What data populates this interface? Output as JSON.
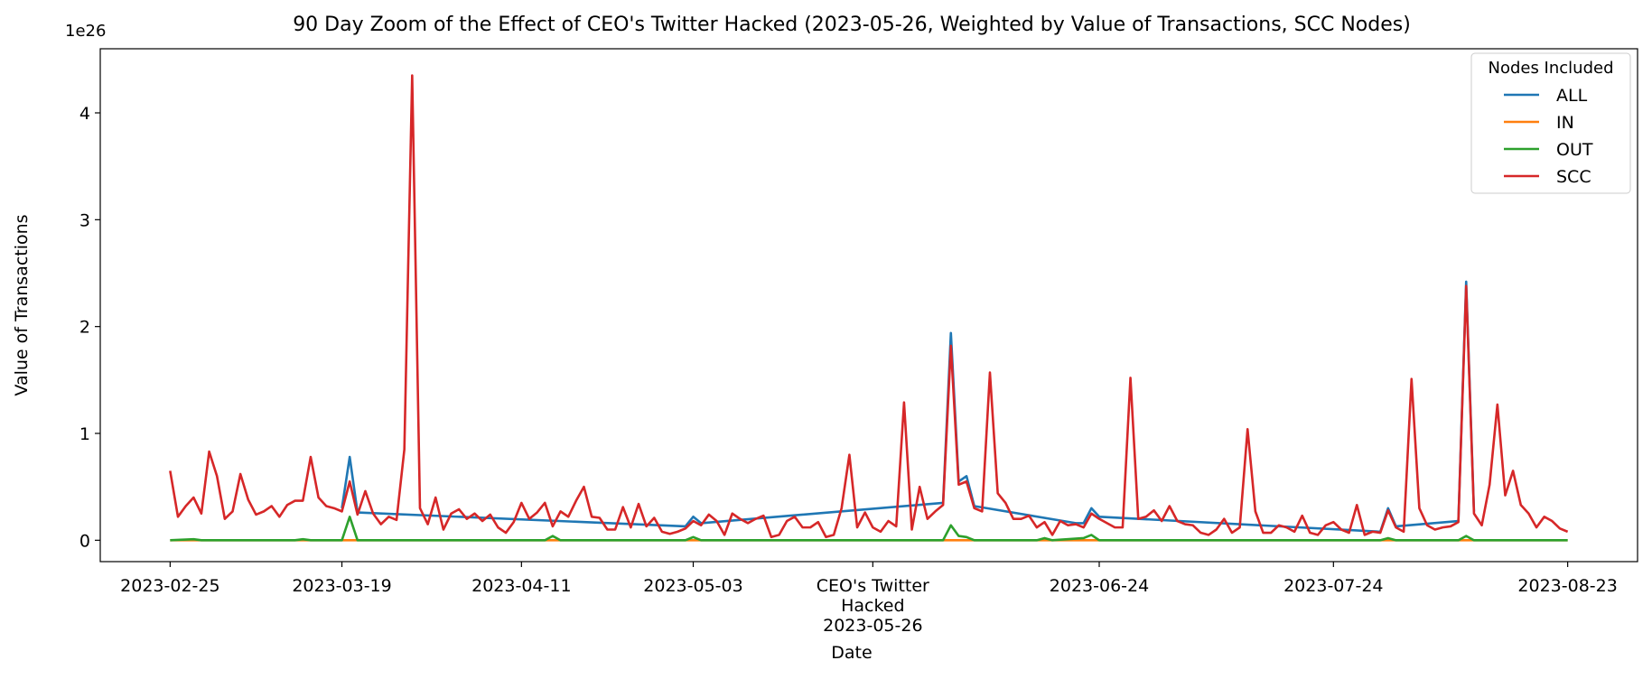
{
  "chart_data": {
    "type": "line",
    "title": "90 Day Zoom of the Effect of CEO's Twitter Hacked (2023-05-26, Weighted by Value of Transactions, SCC Nodes)",
    "xlabel": "Date",
    "ylabel": "Value of Transactions",
    "y_multiplier_label": "1e26",
    "ylim": [
      -0.2,
      4.6
    ],
    "y_ticks": [
      0,
      1,
      2,
      3,
      4
    ],
    "y_tick_labels": [
      "0",
      "1",
      "2",
      "3",
      "4"
    ],
    "x_tick_labels": [
      {
        "date": "2023-02-25",
        "lines": [
          "2023-02-25"
        ]
      },
      {
        "date": "2023-03-19",
        "lines": [
          "2023-03-19"
        ]
      },
      {
        "date": "2023-04-11",
        "lines": [
          "2023-04-11"
        ]
      },
      {
        "date": "2023-05-03",
        "lines": [
          "2023-05-03"
        ]
      },
      {
        "date": "2023-05-26",
        "lines": [
          "CEO's Twitter",
          "Hacked",
          "2023-05-26"
        ]
      },
      {
        "date": "2023-06-24",
        "lines": [
          "2023-06-24"
        ]
      },
      {
        "date": "2023-07-24",
        "lines": [
          "2023-07-24"
        ]
      },
      {
        "date": "2023-08-23",
        "lines": [
          "2023-08-23"
        ]
      }
    ],
    "x_start": "2023-02-25",
    "x_end": "2023-08-23",
    "legend": {
      "title": "Nodes Included",
      "placement": "top-right"
    },
    "colors": {
      "ALL": "#1f77b4",
      "IN": "#ff7f0e",
      "OUT": "#2ca02c",
      "SCC": "#d62728"
    },
    "series": [
      {
        "name": "SCC",
        "points": [
          [
            "2023-02-25",
            0.65
          ],
          [
            "2023-02-26",
            0.22
          ],
          [
            "2023-02-27",
            0.32
          ],
          [
            "2023-02-28",
            0.4
          ],
          [
            "2023-03-01",
            0.25
          ],
          [
            "2023-03-02",
            0.83
          ],
          [
            "2023-03-03",
            0.6
          ],
          [
            "2023-03-04",
            0.2
          ],
          [
            "2023-03-05",
            0.27
          ],
          [
            "2023-03-06",
            0.62
          ],
          [
            "2023-03-07",
            0.38
          ],
          [
            "2023-03-08",
            0.24
          ],
          [
            "2023-03-09",
            0.27
          ],
          [
            "2023-03-10",
            0.32
          ],
          [
            "2023-03-11",
            0.22
          ],
          [
            "2023-03-12",
            0.33
          ],
          [
            "2023-03-13",
            0.37
          ],
          [
            "2023-03-14",
            0.37
          ],
          [
            "2023-03-15",
            0.78
          ],
          [
            "2023-03-16",
            0.4
          ],
          [
            "2023-03-17",
            0.32
          ],
          [
            "2023-03-18",
            0.3
          ],
          [
            "2023-03-19",
            0.27
          ],
          [
            "2023-03-20",
            0.55
          ],
          [
            "2023-03-21",
            0.24
          ],
          [
            "2023-03-22",
            0.46
          ],
          [
            "2023-03-23",
            0.25
          ],
          [
            "2023-03-24",
            0.15
          ],
          [
            "2023-03-25",
            0.22
          ],
          [
            "2023-03-26",
            0.19
          ],
          [
            "2023-03-27",
            0.85
          ],
          [
            "2023-03-28",
            4.35
          ],
          [
            "2023-03-29",
            0.3
          ],
          [
            "2023-03-30",
            0.15
          ],
          [
            "2023-03-31",
            0.4
          ],
          [
            "2023-04-01",
            0.1
          ],
          [
            "2023-04-02",
            0.25
          ],
          [
            "2023-04-03",
            0.29
          ],
          [
            "2023-04-04",
            0.2
          ],
          [
            "2023-04-05",
            0.25
          ],
          [
            "2023-04-06",
            0.18
          ],
          [
            "2023-04-07",
            0.24
          ],
          [
            "2023-04-08",
            0.12
          ],
          [
            "2023-04-09",
            0.07
          ],
          [
            "2023-04-10",
            0.17
          ],
          [
            "2023-04-11",
            0.35
          ],
          [
            "2023-04-12",
            0.2
          ],
          [
            "2023-04-13",
            0.26
          ],
          [
            "2023-04-14",
            0.35
          ],
          [
            "2023-04-15",
            0.13
          ],
          [
            "2023-04-16",
            0.27
          ],
          [
            "2023-04-17",
            0.22
          ],
          [
            "2023-04-18",
            0.37
          ],
          [
            "2023-04-19",
            0.5
          ],
          [
            "2023-04-20",
            0.22
          ],
          [
            "2023-04-21",
            0.21
          ],
          [
            "2023-04-22",
            0.1
          ],
          [
            "2023-04-23",
            0.1
          ],
          [
            "2023-04-24",
            0.31
          ],
          [
            "2023-04-25",
            0.12
          ],
          [
            "2023-04-26",
            0.34
          ],
          [
            "2023-04-27",
            0.13
          ],
          [
            "2023-04-28",
            0.21
          ],
          [
            "2023-04-29",
            0.08
          ],
          [
            "2023-04-30",
            0.06
          ],
          [
            "2023-05-01",
            0.08
          ],
          [
            "2023-05-02",
            0.11
          ],
          [
            "2023-05-03",
            0.18
          ],
          [
            "2023-05-04",
            0.14
          ],
          [
            "2023-05-05",
            0.24
          ],
          [
            "2023-05-06",
            0.18
          ],
          [
            "2023-05-07",
            0.05
          ],
          [
            "2023-05-08",
            0.25
          ],
          [
            "2023-05-09",
            0.2
          ],
          [
            "2023-05-10",
            0.16
          ],
          [
            "2023-05-11",
            0.2
          ],
          [
            "2023-05-12",
            0.23
          ],
          [
            "2023-05-13",
            0.03
          ],
          [
            "2023-05-14",
            0.05
          ],
          [
            "2023-05-15",
            0.18
          ],
          [
            "2023-05-16",
            0.22
          ],
          [
            "2023-05-17",
            0.12
          ],
          [
            "2023-05-18",
            0.12
          ],
          [
            "2023-05-19",
            0.17
          ],
          [
            "2023-05-20",
            0.03
          ],
          [
            "2023-05-21",
            0.05
          ],
          [
            "2023-05-22",
            0.3
          ],
          [
            "2023-05-23",
            0.8
          ],
          [
            "2023-05-24",
            0.12
          ],
          [
            "2023-05-25",
            0.26
          ],
          [
            "2023-05-26",
            0.12
          ],
          [
            "2023-05-27",
            0.08
          ],
          [
            "2023-05-28",
            0.18
          ],
          [
            "2023-05-29",
            0.13
          ],
          [
            "2023-05-30",
            1.29
          ],
          [
            "2023-05-31",
            0.1
          ],
          [
            "2023-06-01",
            0.5
          ],
          [
            "2023-06-02",
            0.2
          ],
          [
            "2023-06-03",
            0.27
          ],
          [
            "2023-06-04",
            0.33
          ],
          [
            "2023-06-05",
            1.82
          ],
          [
            "2023-06-06",
            0.52
          ],
          [
            "2023-06-07",
            0.55
          ],
          [
            "2023-06-08",
            0.3
          ],
          [
            "2023-06-09",
            0.27
          ],
          [
            "2023-06-10",
            1.57
          ],
          [
            "2023-06-11",
            0.44
          ],
          [
            "2023-06-12",
            0.35
          ],
          [
            "2023-06-13",
            0.2
          ],
          [
            "2023-06-14",
            0.2
          ],
          [
            "2023-06-15",
            0.23
          ],
          [
            "2023-06-16",
            0.12
          ],
          [
            "2023-06-17",
            0.17
          ],
          [
            "2023-06-18",
            0.05
          ],
          [
            "2023-06-19",
            0.18
          ],
          [
            "2023-06-20",
            0.14
          ],
          [
            "2023-06-21",
            0.15
          ],
          [
            "2023-06-22",
            0.12
          ],
          [
            "2023-06-23",
            0.25
          ],
          [
            "2023-06-24",
            0.2
          ],
          [
            "2023-06-25",
            0.16
          ],
          [
            "2023-06-26",
            0.12
          ],
          [
            "2023-06-27",
            0.12
          ],
          [
            "2023-06-28",
            1.52
          ],
          [
            "2023-06-29",
            0.2
          ],
          [
            "2023-06-30",
            0.22
          ],
          [
            "2023-07-01",
            0.28
          ],
          [
            "2023-07-02",
            0.18
          ],
          [
            "2023-07-03",
            0.32
          ],
          [
            "2023-07-04",
            0.18
          ],
          [
            "2023-07-05",
            0.15
          ],
          [
            "2023-07-06",
            0.14
          ],
          [
            "2023-07-07",
            0.07
          ],
          [
            "2023-07-08",
            0.05
          ],
          [
            "2023-07-09",
            0.1
          ],
          [
            "2023-07-10",
            0.2
          ],
          [
            "2023-07-11",
            0.07
          ],
          [
            "2023-07-12",
            0.12
          ],
          [
            "2023-07-13",
            1.04
          ],
          [
            "2023-07-14",
            0.27
          ],
          [
            "2023-07-15",
            0.07
          ],
          [
            "2023-07-16",
            0.07
          ],
          [
            "2023-07-17",
            0.14
          ],
          [
            "2023-07-18",
            0.12
          ],
          [
            "2023-07-19",
            0.08
          ],
          [
            "2023-07-20",
            0.23
          ],
          [
            "2023-07-21",
            0.07
          ],
          [
            "2023-07-22",
            0.05
          ],
          [
            "2023-07-23",
            0.14
          ],
          [
            "2023-07-24",
            0.17
          ],
          [
            "2023-07-25",
            0.1
          ],
          [
            "2023-07-26",
            0.07
          ],
          [
            "2023-07-27",
            0.33
          ],
          [
            "2023-07-28",
            0.05
          ],
          [
            "2023-07-29",
            0.08
          ],
          [
            "2023-07-30",
            0.07
          ],
          [
            "2023-07-31",
            0.28
          ],
          [
            "2023-08-01",
            0.12
          ],
          [
            "2023-08-02",
            0.08
          ],
          [
            "2023-08-03",
            1.51
          ],
          [
            "2023-08-04",
            0.3
          ],
          [
            "2023-08-05",
            0.14
          ],
          [
            "2023-08-06",
            0.1
          ],
          [
            "2023-08-07",
            0.12
          ],
          [
            "2023-08-08",
            0.13
          ],
          [
            "2023-08-09",
            0.17
          ],
          [
            "2023-08-10",
            2.38
          ],
          [
            "2023-08-11",
            0.25
          ],
          [
            "2023-08-12",
            0.14
          ],
          [
            "2023-08-13",
            0.52
          ],
          [
            "2023-08-14",
            1.27
          ],
          [
            "2023-08-15",
            0.42
          ],
          [
            "2023-08-16",
            0.65
          ],
          [
            "2023-08-17",
            0.33
          ],
          [
            "2023-08-18",
            0.25
          ],
          [
            "2023-08-19",
            0.12
          ],
          [
            "2023-08-20",
            0.22
          ],
          [
            "2023-08-21",
            0.18
          ],
          [
            "2023-08-22",
            0.11
          ],
          [
            "2023-08-23",
            0.08
          ]
        ]
      },
      {
        "name": "ALL",
        "points": [
          [
            "2023-03-19",
            0.3
          ],
          [
            "2023-03-20",
            0.78
          ],
          [
            "2023-03-21",
            0.26
          ],
          [
            "2023-05-02",
            0.13
          ],
          [
            "2023-05-03",
            0.22
          ],
          [
            "2023-05-04",
            0.16
          ],
          [
            "2023-06-04",
            0.35
          ],
          [
            "2023-06-05",
            1.94
          ],
          [
            "2023-06-06",
            0.55
          ],
          [
            "2023-06-07",
            0.6
          ],
          [
            "2023-06-08",
            0.32
          ],
          [
            "2023-06-21",
            0.16
          ],
          [
            "2023-06-22",
            0.16
          ],
          [
            "2023-06-23",
            0.3
          ],
          [
            "2023-06-24",
            0.22
          ],
          [
            "2023-07-30",
            0.08
          ],
          [
            "2023-07-31",
            0.3
          ],
          [
            "2023-08-01",
            0.13
          ],
          [
            "2023-08-09",
            0.18
          ],
          [
            "2023-08-10",
            2.42
          ],
          [
            "2023-08-11",
            0.27
          ]
        ]
      },
      {
        "name": "IN",
        "points": [
          [
            "2023-02-25",
            0.0
          ],
          [
            "2023-08-23",
            0.0
          ]
        ]
      },
      {
        "name": "OUT",
        "points": [
          [
            "2023-02-25",
            0.0
          ],
          [
            "2023-02-28",
            0.01
          ],
          [
            "2023-03-01",
            0.0
          ],
          [
            "2023-03-13",
            0.0
          ],
          [
            "2023-03-14",
            0.01
          ],
          [
            "2023-03-15",
            0.0
          ],
          [
            "2023-03-19",
            0.0
          ],
          [
            "2023-03-20",
            0.22
          ],
          [
            "2023-03-21",
            0.0
          ],
          [
            "2023-04-14",
            0.0
          ],
          [
            "2023-04-15",
            0.04
          ],
          [
            "2023-04-16",
            0.0
          ],
          [
            "2023-05-02",
            0.0
          ],
          [
            "2023-05-03",
            0.03
          ],
          [
            "2023-05-04",
            0.0
          ],
          [
            "2023-06-04",
            0.0
          ],
          [
            "2023-06-05",
            0.14
          ],
          [
            "2023-06-06",
            0.04
          ],
          [
            "2023-06-07",
            0.03
          ],
          [
            "2023-06-08",
            0.0
          ],
          [
            "2023-06-16",
            0.0
          ],
          [
            "2023-06-17",
            0.02
          ],
          [
            "2023-06-18",
            0.0
          ],
          [
            "2023-06-22",
            0.02
          ],
          [
            "2023-06-23",
            0.05
          ],
          [
            "2023-06-24",
            0.0
          ],
          [
            "2023-07-30",
            0.0
          ],
          [
            "2023-07-31",
            0.02
          ],
          [
            "2023-08-01",
            0.0
          ],
          [
            "2023-08-09",
            0.0
          ],
          [
            "2023-08-10",
            0.04
          ],
          [
            "2023-08-11",
            0.0
          ],
          [
            "2023-08-23",
            0.0
          ]
        ]
      }
    ]
  }
}
